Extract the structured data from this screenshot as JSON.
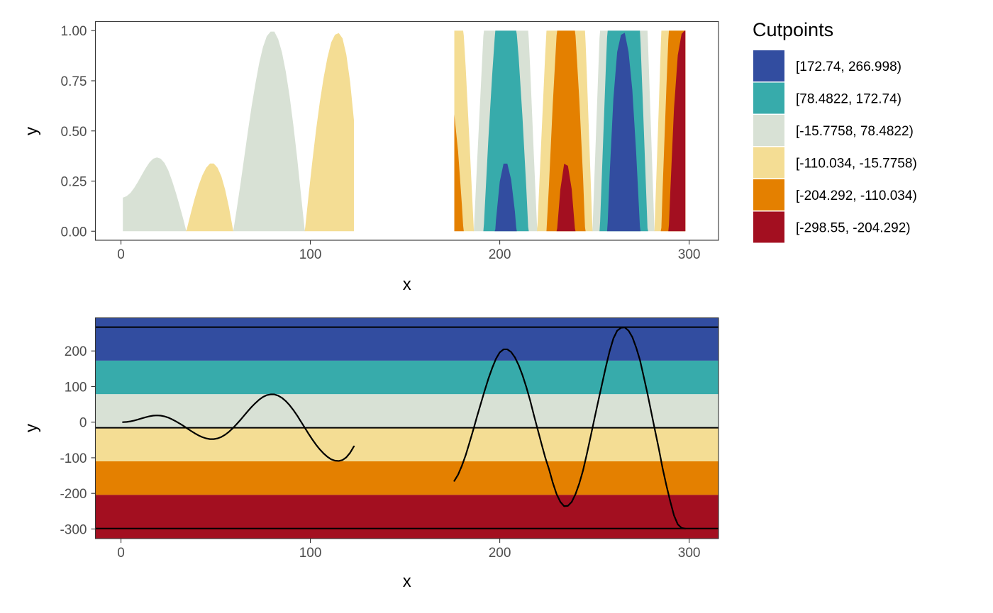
{
  "legend": {
    "title": "Cutpoints",
    "items": [
      {
        "label": "[172.74, 266.998)",
        "color": "#324DA0"
      },
      {
        "label": "[78.4822, 172.74)",
        "color": "#37ABAB"
      },
      {
        "label": "[-15.7758, 78.4822)",
        "color": "#D8E1D5"
      },
      {
        "label": "[-110.034, -15.7758)",
        "color": "#F4DD94"
      },
      {
        "label": "[-204.292, -110.034)",
        "color": "#E48000"
      },
      {
        "label": "[-298.55, -204.292)",
        "color": "#A30F20"
      }
    ]
  },
  "chart_data": [
    {
      "type": "area",
      "subtype": "horizon",
      "xlabel": "x",
      "ylabel": "y",
      "xlim": [
        -13.5,
        315.5
      ],
      "ylim": [
        -0.045,
        1.045
      ],
      "xticks": [
        0,
        100,
        200,
        300
      ],
      "xtick_labels": [
        "0",
        "100",
        "200",
        "300"
      ],
      "yticks": [
        0,
        0.25,
        0.5,
        0.75,
        1
      ],
      "ytick_labels": [
        "0.00",
        "0.25",
        "0.50",
        "0.75",
        "1.00"
      ],
      "grid": false,
      "legend_position": "right",
      "source_series": "underlying series y(x) shown in the lower panel",
      "band_origin": -15.7758,
      "band_width": 94.258
    },
    {
      "type": "line",
      "xlabel": "x",
      "ylabel": "y",
      "xlim": [
        -13.5,
        315.5
      ],
      "ylim": [
        -327,
        293
      ],
      "xticks": [
        0,
        100,
        200,
        300
      ],
      "xtick_labels": [
        "0",
        "100",
        "200",
        "300"
      ],
      "yticks": [
        -300,
        -200,
        -100,
        0,
        100,
        200
      ],
      "ytick_labels": [
        "-300",
        "-200",
        "-100",
        "0",
        "100",
        "200"
      ],
      "grid": false,
      "bands": [
        {
          "from": 172.74,
          "to": 293,
          "color": "#324DA0"
        },
        {
          "from": 78.4822,
          "to": 172.74,
          "color": "#37ABAB"
        },
        {
          "from": -15.7758,
          "to": 78.4822,
          "color": "#D8E1D5"
        },
        {
          "from": -110.034,
          "to": -15.7758,
          "color": "#F4DD94"
        },
        {
          "from": -204.292,
          "to": -110.034,
          "color": "#E48000"
        },
        {
          "from": -327,
          "to": -204.292,
          "color": "#A30F20"
        }
      ],
      "hlines": [
        266.998,
        -15.7758,
        -298.55
      ],
      "series": [
        {
          "x": [
            1,
            3,
            5,
            7,
            9,
            11,
            13,
            15,
            17,
            19,
            21,
            23,
            25,
            27,
            29,
            31,
            33,
            35,
            37,
            39,
            41,
            43,
            45,
            47,
            49,
            51,
            53,
            55,
            57,
            59,
            61,
            63,
            65,
            67,
            69,
            71,
            73,
            75,
            77,
            79,
            81,
            83,
            85,
            87,
            89,
            91,
            93,
            95,
            97,
            99,
            101,
            103,
            105,
            107,
            109,
            111,
            113,
            115,
            117,
            119,
            121,
            123
          ],
          "y": [
            0,
            0.7,
            2.2,
            4.6,
            7.5,
            10.7,
            13.8,
            16.5,
            18.3,
            18.9,
            18.3,
            16.3,
            12.8,
            7.9,
            2.3,
            -3.9,
            -10.4,
            -17.6,
            -24.7,
            -31.4,
            -37.3,
            -42.1,
            -45.6,
            -47.6,
            -47.6,
            -45.6,
            -41.6,
            -35.3,
            -27.1,
            -17.3,
            -6.1,
            5.8,
            18.4,
            31.0,
            43.0,
            53.6,
            63.3,
            70.8,
            75.9,
            78.0,
            78.0,
            74.5,
            68.3,
            59.3,
            47.9,
            34.2,
            18.9,
            1.8,
            -15.1,
            -32.2,
            -48.3,
            -63.3,
            -76.5,
            -87.9,
            -97.3,
            -104.5,
            -108.1,
            -108.9,
            -106.4,
            -98.7,
            -85.9,
            -68.0
          ]
        },
        {
          "x": [
            176,
            178,
            180,
            182,
            184,
            186,
            188,
            190,
            192,
            194,
            196,
            198,
            200,
            202,
            204,
            206,
            208,
            210,
            212,
            214,
            216,
            218,
            220,
            222,
            224,
            226,
            228,
            230,
            232,
            234,
            236,
            238,
            240,
            242,
            244,
            246,
            248,
            250,
            252,
            254,
            256,
            258,
            260,
            262,
            264,
            266,
            268,
            270,
            272,
            274,
            276,
            278,
            280,
            282,
            284,
            286,
            288,
            290,
            292,
            294,
            296,
            298
          ],
          "y": [
            -165,
            -147.5,
            -122.5,
            -93,
            -58,
            -21.8,
            16,
            52,
            88,
            122,
            152,
            178,
            196,
            204.5,
            204.5,
            197,
            182,
            160,
            132,
            99,
            62,
            20,
            -20,
            -60,
            -99,
            -132,
            -170,
            -202,
            -224,
            -236,
            -235,
            -224,
            -202,
            -172,
            -135,
            -89,
            -40,
            10,
            59,
            107,
            155,
            199,
            235,
            257,
            265,
            266,
            257,
            239,
            210,
            175,
            128,
            80,
            28,
            -24,
            -75,
            -130,
            -178,
            -222,
            -262,
            -287,
            -297,
            -299
          ]
        }
      ]
    }
  ]
}
